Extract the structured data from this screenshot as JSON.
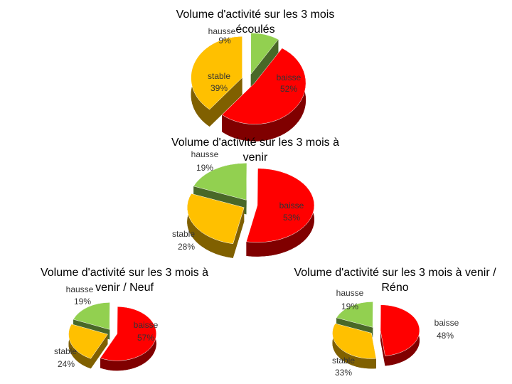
{
  "chart_data": [
    {
      "type": "pie",
      "title": "Volume d'activité sur les 3 mois écoulés",
      "categories": [
        "hausse",
        "baisse",
        "stable"
      ],
      "values": [
        9,
        52,
        39
      ],
      "value_labels": [
        "9%",
        "52%",
        "39%"
      ],
      "colors": [
        "#92d050",
        "#ff0000",
        "#ffc000"
      ]
    },
    {
      "type": "pie",
      "title": "Volume d'activité sur les 3 mois à venir",
      "categories": [
        "hausse",
        "baisse",
        "stable"
      ],
      "values": [
        19,
        53,
        28
      ],
      "value_labels": [
        "19%",
        "53%",
        "28%"
      ],
      "colors": [
        "#92d050",
        "#ff0000",
        "#ffc000"
      ]
    },
    {
      "type": "pie",
      "title": "Volume d'activité sur les 3 mois à venir / Neuf",
      "categories": [
        "hausse",
        "baisse",
        "stable"
      ],
      "values": [
        19,
        57,
        24
      ],
      "value_labels": [
        "19%",
        "57%",
        "24%"
      ],
      "colors": [
        "#92d050",
        "#ff0000",
        "#ffc000"
      ]
    },
    {
      "type": "pie",
      "title": "Volume d'activité sur les 3 mois à venir / Réno",
      "categories": [
        "hausse",
        "baisse",
        "stable"
      ],
      "values": [
        19,
        48,
        33
      ],
      "value_labels": [
        "19%",
        "48%",
        "33%"
      ],
      "colors": [
        "#92d050",
        "#ff0000",
        "#ffc000"
      ]
    }
  ]
}
